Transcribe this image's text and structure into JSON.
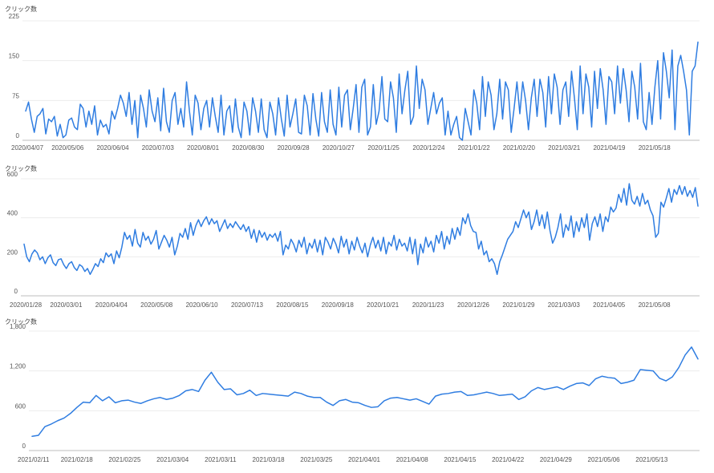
{
  "colors": {
    "line": "#2f7de1",
    "grid": "#e8e8e8",
    "axis": "#bdbdbd",
    "text": "#555555"
  },
  "chart_data": [
    {
      "type": "line",
      "ylabel": "クリック数",
      "ylim": [
        0,
        225
      ],
      "yticks": [
        "0",
        "75",
        "150",
        "225"
      ],
      "ytick_values": [
        0,
        75,
        150,
        225
      ],
      "xticks": [
        "2020/04/07",
        "2020/05/06",
        "2020/06/04",
        "2020/07/03",
        "2020/08/01",
        "2020/08/30",
        "2020/09/28",
        "2020/10/27",
        "2020/11/25",
        "2020/12/24",
        "2021/01/22",
        "2021/02/20",
        "2021/03/21",
        "2021/04/19",
        "2021/05/18"
      ],
      "x_range": [
        "2020/04/07",
        "2021/05/26"
      ],
      "grid": true,
      "series": [
        {
          "values": [
            55,
            72,
            40,
            15,
            45,
            50,
            60,
            12,
            40,
            35,
            45,
            8,
            30,
            5,
            10,
            38,
            42,
            25,
            20,
            68,
            60,
            25,
            55,
            30,
            65,
            10,
            38,
            25,
            30,
            12,
            55,
            40,
            60,
            85,
            70,
            45,
            90,
            30,
            75,
            5,
            85,
            60,
            25,
            95,
            55,
            35,
            80,
            18,
            98,
            35,
            15,
            75,
            90,
            30,
            60,
            25,
            110,
            55,
            10,
            85,
            70,
            20,
            60,
            75,
            25,
            80,
            45,
            15,
            85,
            10,
            55,
            65,
            15,
            78,
            25,
            5,
            72,
            55,
            10,
            80,
            55,
            15,
            78,
            20,
            5,
            72,
            50,
            10,
            80,
            40,
            8,
            85,
            25,
            50,
            78,
            15,
            12,
            85,
            65,
            10,
            88,
            40,
            8,
            90,
            35,
            15,
            95,
            30,
            10,
            100,
            25,
            85,
            95,
            20,
            60,
            105,
            15,
            100,
            115,
            10,
            25,
            105,
            30,
            55,
            120,
            40,
            35,
            110,
            80,
            15,
            125,
            50,
            95,
            130,
            30,
            45,
            140,
            60,
            115,
            95,
            30,
            60,
            90,
            50,
            70,
            80,
            10,
            55,
            10,
            30,
            45,
            5,
            0,
            60,
            35,
            10,
            95,
            70,
            20,
            120,
            45,
            110,
            85,
            20,
            50,
            115,
            40,
            110,
            95,
            15,
            60,
            110,
            50,
            110,
            75,
            20,
            80,
            115,
            45,
            115,
            90,
            25,
            120,
            50,
            125,
            100,
            30,
            95,
            110,
            45,
            130,
            80,
            20,
            140,
            50,
            125,
            100,
            25,
            130,
            60,
            135,
            95,
            30,
            120,
            110,
            50,
            140,
            70,
            135,
            95,
            35,
            130,
            100,
            40,
            145,
            35,
            20,
            90,
            30,
            100,
            150,
            40,
            165,
            130,
            80,
            170,
            20,
            140,
            160,
            130,
            95,
            10,
            130,
            140,
            185
          ]
        }
      ]
    },
    {
      "type": "line",
      "ylabel": "クリック数",
      "ylim": [
        0,
        600
      ],
      "yticks": [
        "0",
        "200",
        "400",
        "600"
      ],
      "ytick_values": [
        0,
        200,
        400,
        600
      ],
      "xticks": [
        "2020/01/28",
        "2020/03/01",
        "2020/04/04",
        "2020/05/08",
        "2020/06/10",
        "2020/07/13",
        "2020/08/15",
        "2020/09/18",
        "2020/10/21",
        "2020/11/23",
        "2020/12/26",
        "2021/01/29",
        "2021/03/03",
        "2021/04/05",
        "2021/05/08"
      ],
      "x_range": [
        "2020/01/28",
        "2021/05/22"
      ],
      "grid": true,
      "series": [
        {
          "values": [
            265,
            200,
            175,
            215,
            235,
            220,
            185,
            200,
            165,
            195,
            210,
            170,
            155,
            185,
            190,
            160,
            140,
            165,
            175,
            145,
            130,
            160,
            150,
            125,
            140,
            110,
            135,
            165,
            150,
            190,
            170,
            220,
            200,
            215,
            165,
            230,
            195,
            250,
            325,
            290,
            310,
            255,
            340,
            270,
            250,
            325,
            285,
            305,
            265,
            290,
            335,
            240,
            275,
            310,
            285,
            250,
            300,
            210,
            255,
            320,
            300,
            345,
            290,
            375,
            310,
            360,
            390,
            355,
            385,
            405,
            365,
            395,
            370,
            385,
            330,
            360,
            390,
            345,
            370,
            350,
            380,
            360,
            340,
            365,
            330,
            355,
            295,
            340,
            275,
            335,
            300,
            325,
            285,
            315,
            300,
            320,
            280,
            330,
            210,
            260,
            240,
            290,
            265,
            225,
            285,
            250,
            300,
            215,
            270,
            245,
            290,
            225,
            285,
            210,
            300,
            275,
            240,
            295,
            265,
            220,
            305,
            250,
            290,
            215,
            280,
            235,
            300,
            255,
            220,
            270,
            200,
            260,
            300,
            245,
            285,
            230,
            300,
            215,
            275,
            255,
            310,
            235,
            290,
            255,
            270,
            230,
            300,
            215,
            290,
            160,
            265,
            220,
            300,
            250,
            280,
            225,
            310,
            270,
            330,
            240,
            305,
            265,
            345,
            290,
            350,
            310,
            400,
            370,
            420,
            360,
            330,
            325,
            240,
            280,
            210,
            230,
            175,
            190,
            165,
            110,
            175,
            210,
            250,
            290,
            310,
            330,
            380,
            350,
            395,
            440,
            400,
            430,
            340,
            380,
            440,
            360,
            415,
            345,
            430,
            335,
            270,
            300,
            350,
            420,
            300,
            365,
            335,
            410,
            300,
            380,
            330,
            400,
            350,
            420,
            285,
            370,
            405,
            355,
            420,
            330,
            405,
            380,
            455,
            430,
            450,
            520,
            480,
            550,
            465,
            575,
            490,
            470,
            510,
            460,
            525,
            470,
            490,
            440,
            410,
            300,
            320,
            480,
            455,
            500,
            550,
            480,
            545,
            520,
            565,
            520,
            560,
            510,
            540,
            505,
            555,
            460
          ]
        }
      ]
    },
    {
      "type": "line",
      "ylabel": "クリック数",
      "ylim": [
        0,
        1800
      ],
      "yticks": [
        "0",
        "600",
        "1,200",
        "1,800"
      ],
      "ytick_values": [
        0,
        600,
        1200,
        1800
      ],
      "xticks": [
        "2021/02/11",
        "2021/02/18",
        "2021/02/25",
        "2021/03/04",
        "2021/03/11",
        "2021/03/18",
        "2021/03/25",
        "2021/04/01",
        "2021/04/08",
        "2021/04/15",
        "2021/04/22",
        "2021/04/29",
        "2021/05/06",
        "2021/05/13"
      ],
      "x_range": [
        "2021/02/11",
        "2021/05/19"
      ],
      "grid": true,
      "series": [
        {
          "values": [
            215,
            230,
            360,
            400,
            450,
            490,
            560,
            650,
            730,
            720,
            830,
            750,
            810,
            720,
            750,
            760,
            730,
            710,
            750,
            780,
            800,
            770,
            790,
            830,
            900,
            920,
            890,
            1060,
            1180,
            1030,
            920,
            930,
            840,
            860,
            910,
            830,
            860,
            850,
            840,
            830,
            820,
            880,
            860,
            820,
            800,
            800,
            730,
            680,
            750,
            770,
            730,
            720,
            680,
            650,
            660,
            750,
            790,
            800,
            780,
            760,
            780,
            740,
            700,
            820,
            850,
            860,
            880,
            890,
            830,
            840,
            860,
            880,
            860,
            830,
            840,
            850,
            770,
            810,
            900,
            950,
            920,
            940,
            960,
            920,
            970,
            1010,
            1020,
            980,
            1080,
            1120,
            1100,
            1090,
            1010,
            1030,
            1060,
            1220,
            1210,
            1200,
            1090,
            1050,
            1110,
            1250,
            1440,
            1560,
            1380
          ]
        }
      ]
    }
  ]
}
